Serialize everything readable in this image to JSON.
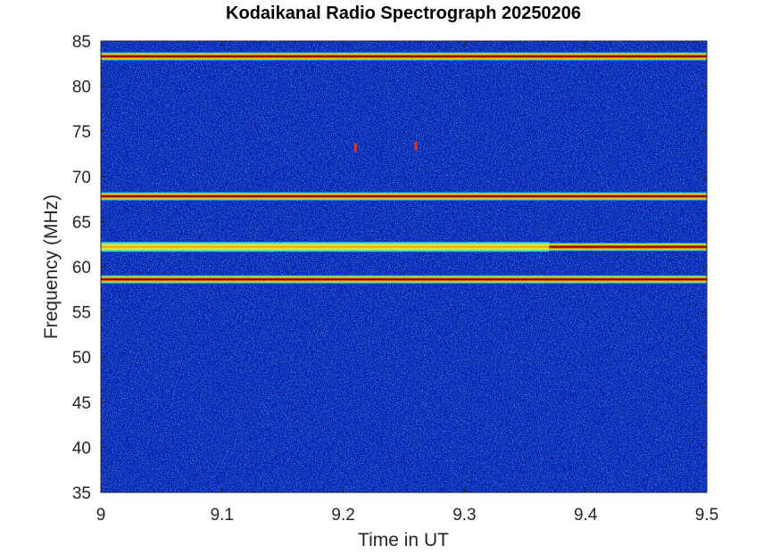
{
  "chart_data": {
    "type": "heatmap",
    "title": "Kodaikanal Radio Spectrograph  20250206",
    "xlabel": "Time in UT",
    "ylabel": "Frequency (MHz)",
    "xlim": [
      9,
      9.5
    ],
    "ylim": [
      35,
      85
    ],
    "x_ticks": [
      "9",
      "9.1",
      "9.2",
      "9.3",
      "9.4",
      "9.5"
    ],
    "y_ticks": [
      "35",
      "40",
      "45",
      "50",
      "55",
      "60",
      "65",
      "70",
      "75",
      "80",
      "85"
    ],
    "colormap": "jet",
    "background_color": "#0a1aa8",
    "bands": [
      {
        "frequency_mhz": 83.3,
        "intensity": "high",
        "t_start": 9.0,
        "t_end": 9.5
      },
      {
        "frequency_mhz": 67.8,
        "intensity": "high",
        "t_start": 9.0,
        "t_end": 9.5
      },
      {
        "frequency_mhz": 62.2,
        "intensity": "medium",
        "t_start": 9.0,
        "t_end": 9.37
      },
      {
        "frequency_mhz": 62.2,
        "intensity": "high",
        "t_start": 9.37,
        "t_end": 9.5
      },
      {
        "frequency_mhz": 58.6,
        "intensity": "high",
        "t_start": 9.0,
        "t_end": 9.5
      }
    ],
    "spots": [
      {
        "time_ut": 9.21,
        "frequency_mhz": 73.2
      },
      {
        "time_ut": 9.26,
        "frequency_mhz": 73.4
      }
    ],
    "grid": false
  }
}
